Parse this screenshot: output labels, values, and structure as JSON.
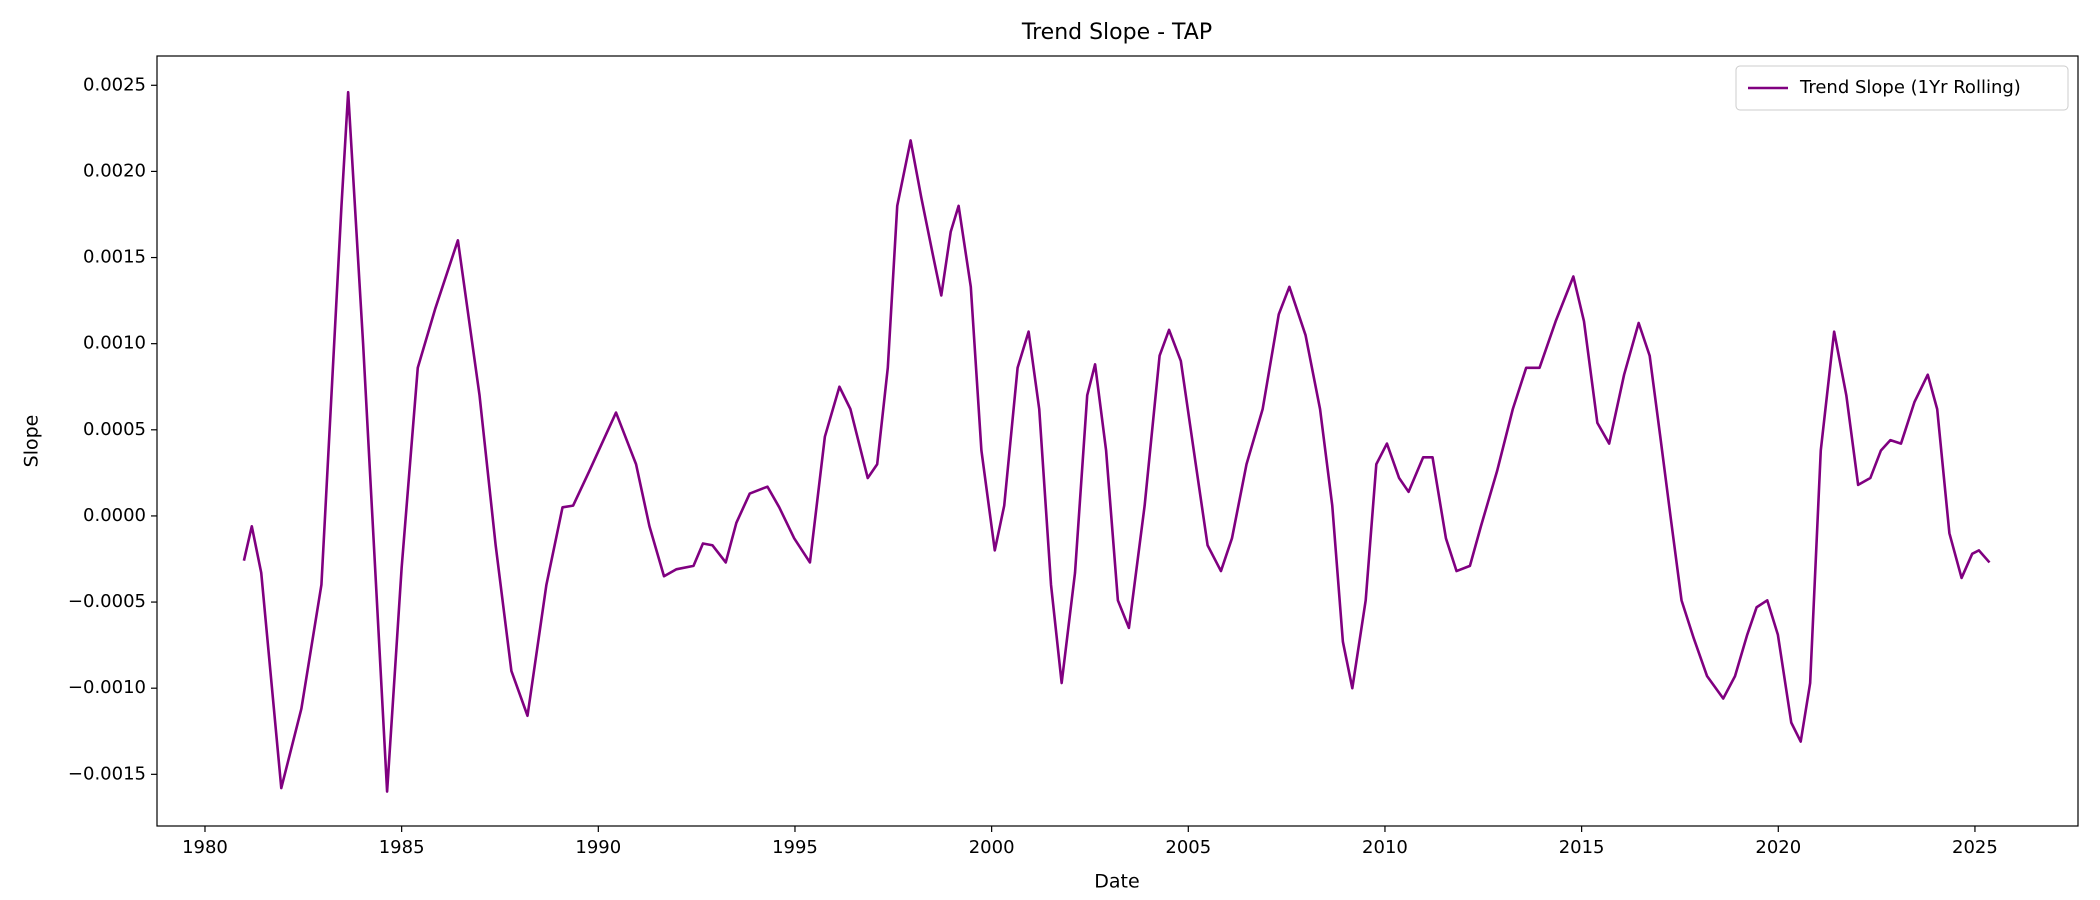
{
  "chart_data": {
    "type": "line",
    "title": "Trend Slope - TAP",
    "x_label": "Date",
    "y_label": "Slope",
    "legend": "upper right",
    "grid": false,
    "xlim": [
      1978.78,
      2027.62
    ],
    "ylim": [
      -0.0018,
      0.00267
    ],
    "xticks": [
      1980,
      1985,
      1990,
      1995,
      2000,
      2005,
      2010,
      2015,
      2020,
      2025
    ],
    "yticks": [
      {
        "value": -0.0015,
        "label": "−0.0015"
      },
      {
        "value": -0.001,
        "label": "−0.0010"
      },
      {
        "value": -0.0005,
        "label": "−0.0005"
      },
      {
        "value": 0,
        "label": "0.0000"
      },
      {
        "value": 0.0005,
        "label": "0.0005"
      },
      {
        "value": 0.001,
        "label": "0.0010"
      },
      {
        "value": 0.0015,
        "label": "0.0015"
      },
      {
        "value": 0.002,
        "label": "0.0020"
      },
      {
        "value": 0.0025,
        "label": "0.0025"
      }
    ],
    "x": [
      1980.99,
      1981.19,
      1981.43,
      1981.94,
      1982.45,
      1982.96,
      1983.47,
      1983.64,
      1984.02,
      1984.63,
      1985.0,
      1985.41,
      1985.85,
      1986.43,
      1986.98,
      1987.39,
      1987.79,
      1988.2,
      1988.68,
      1989.09,
      1989.36,
      1989.77,
      1990.45,
      1990.96,
      1991.3,
      1991.67,
      1991.98,
      1992.42,
      1992.66,
      1992.9,
      1993.24,
      1993.51,
      1993.85,
      1994.3,
      1994.6,
      1994.98,
      1995.38,
      1995.76,
      1996.13,
      1996.41,
      1996.85,
      1997.09,
      1997.36,
      1997.6,
      1997.94,
      1998.21,
      1998.52,
      1998.72,
      1998.96,
      1999.16,
      1999.47,
      1999.74,
      2000.08,
      2000.32,
      2000.66,
      2000.94,
      2001.21,
      2001.51,
      2001.78,
      2002.12,
      2002.43,
      2002.63,
      2002.91,
      2003.21,
      2003.49,
      2003.89,
      2004.27,
      2004.51,
      2004.81,
      2005.19,
      2005.49,
      2005.83,
      2006.11,
      2006.48,
      2006.89,
      2007.3,
      2007.57,
      2007.98,
      2008.35,
      2008.66,
      2008.93,
      2009.17,
      2009.51,
      2009.78,
      2010.05,
      2010.36,
      2010.6,
      2010.97,
      2011.21,
      2011.55,
      2011.82,
      2012.16,
      2012.44,
      2012.85,
      2013.25,
      2013.59,
      2013.93,
      2014.34,
      2014.79,
      2015.06,
      2015.4,
      2015.7,
      2016.08,
      2016.45,
      2016.73,
      2017.0,
      2017.27,
      2017.54,
      2017.85,
      2018.19,
      2018.6,
      2018.9,
      2019.21,
      2019.45,
      2019.72,
      2019.99,
      2020.33,
      2020.57,
      2020.81,
      2021.08,
      2021.42,
      2021.73,
      2022.03,
      2022.34,
      2022.61,
      2022.85,
      2023.12,
      2023.46,
      2023.8,
      2024.04,
      2024.35,
      2024.66,
      2024.93,
      2025.1,
      2025.37
    ],
    "series": [
      {
        "name": "Trend Slope (1Yr Rolling)",
        "color": "#800080",
        "values": [
          -0.00026,
          -6e-05,
          -0.00033,
          -0.00158,
          -0.00112,
          -0.0004,
          0.0018,
          0.00246,
          0.001,
          -0.0016,
          -0.0003,
          0.00086,
          0.0012,
          0.0016,
          0.0007,
          -0.00017,
          -0.0009,
          -0.00116,
          -0.0004,
          5e-05,
          6e-05,
          0.00026,
          0.0006,
          0.0003,
          -6e-05,
          -0.00035,
          -0.00031,
          -0.00029,
          -0.00016,
          -0.00017,
          -0.00027,
          -4e-05,
          0.00013,
          0.00017,
          5e-05,
          -0.00013,
          -0.00027,
          0.00046,
          0.00075,
          0.00062,
          0.00022,
          0.0003,
          0.00086,
          0.0018,
          0.00218,
          0.00185,
          0.0015,
          0.00128,
          0.00165,
          0.0018,
          0.00133,
          0.00038,
          -0.0002,
          6e-05,
          0.00086,
          0.00107,
          0.00062,
          -0.0004,
          -0.00097,
          -0.00033,
          0.0007,
          0.00088,
          0.00038,
          -0.00049,
          -0.00065,
          6e-05,
          0.00093,
          0.00108,
          0.0009,
          0.0003,
          -0.00017,
          -0.00032,
          -0.00013,
          0.0003,
          0.00062,
          0.00117,
          0.00133,
          0.00105,
          0.00062,
          6e-05,
          -0.00073,
          -0.001,
          -0.00049,
          0.0003,
          0.00042,
          0.00022,
          0.00014,
          0.00034,
          0.00034,
          -0.00013,
          -0.00032,
          -0.00029,
          -6e-05,
          0.00026,
          0.00062,
          0.00086,
          0.00086,
          0.00113,
          0.00139,
          0.00113,
          0.00054,
          0.00042,
          0.00082,
          0.00112,
          0.00093,
          0.00046,
          -2e-05,
          -0.00049,
          -0.00071,
          -0.00093,
          -0.00106,
          -0.00093,
          -0.00069,
          -0.00053,
          -0.00049,
          -0.00069,
          -0.0012,
          -0.00131,
          -0.00097,
          0.00038,
          0.00107,
          0.0007,
          0.00018,
          0.00022,
          0.00038,
          0.00044,
          0.00042,
          0.00066,
          0.00082,
          0.00062,
          -0.0001,
          -0.00036,
          -0.00022,
          -0.0002,
          -0.00027
        ]
      }
    ]
  }
}
